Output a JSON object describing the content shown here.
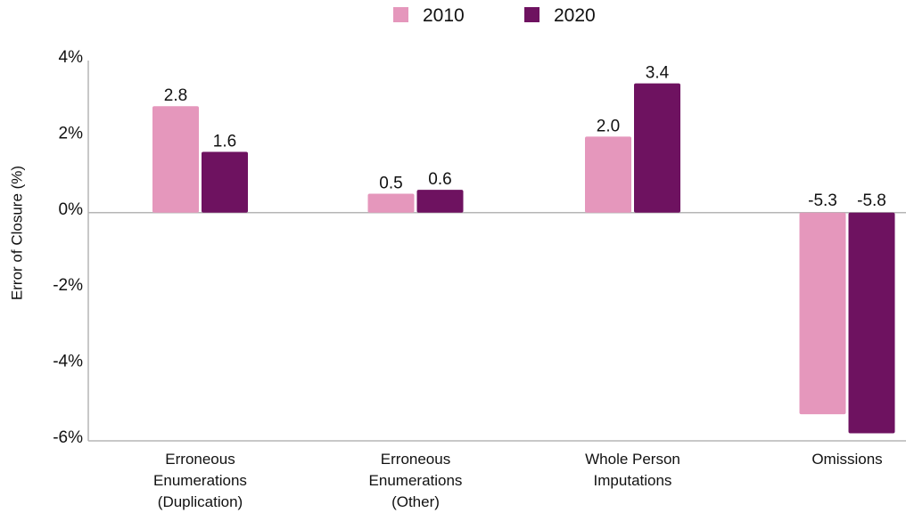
{
  "chart_data": {
    "type": "bar",
    "title": "",
    "xlabel": "",
    "ylabel": "Error of Closure (%)",
    "ylim": [
      -6,
      4
    ],
    "yticks": [
      4,
      2,
      0,
      -2,
      -4,
      -6
    ],
    "ytick_labels": [
      "4%",
      "2%",
      "0%",
      "-2%",
      "-4%",
      "-6%"
    ],
    "categories": [
      [
        "Erroneous",
        "Enumerations",
        "(Duplication)"
      ],
      [
        "Erroneous",
        "Enumerations",
        "(Other)"
      ],
      [
        "Whole Person",
        "Imputations"
      ],
      [
        "Omissions"
      ]
    ],
    "series": [
      {
        "name": "2010",
        "color": "#e597bc",
        "values": [
          2.8,
          0.5,
          2.0,
          -5.3
        ],
        "labels": [
          "2.8",
          "0.5",
          "2.0",
          "-5.3"
        ]
      },
      {
        "name": "2020",
        "color": "#6e1260",
        "values": [
          1.6,
          0.6,
          3.4,
          -5.8
        ],
        "labels": [
          "1.6",
          "0.6",
          "3.4",
          "-5.8"
        ]
      }
    ],
    "legend_position": "top-center",
    "grid": false
  }
}
